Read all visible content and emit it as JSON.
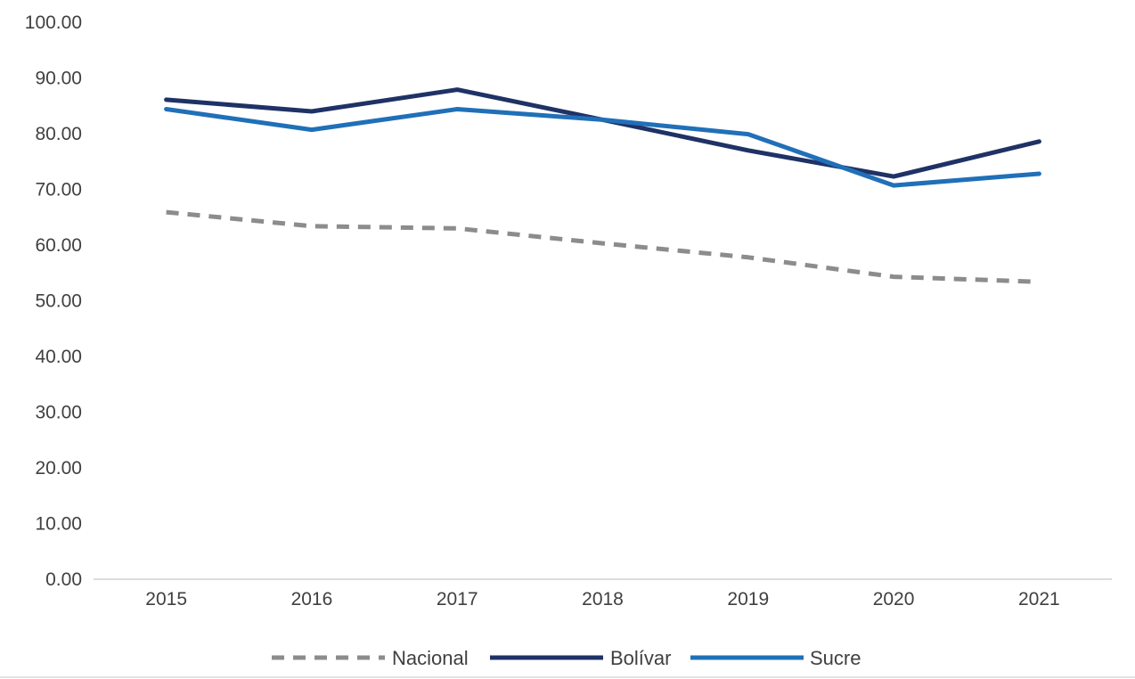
{
  "chart_data": {
    "type": "line",
    "title": "",
    "xlabel": "",
    "ylabel": "",
    "x": [
      "2015",
      "2016",
      "2017",
      "2018",
      "2019",
      "2020",
      "2021"
    ],
    "ylim": [
      0,
      100
    ],
    "yticks": [
      "0.00",
      "10.00",
      "20.00",
      "30.00",
      "40.00",
      "50.00",
      "60.00",
      "70.00",
      "80.00",
      "90.00",
      "100.00"
    ],
    "grid": false,
    "legend_position": "bottom",
    "series": [
      {
        "name": "Nacional",
        "color": "#8c8c8c",
        "style": "dashed",
        "values": [
          65.9,
          63.4,
          63.0,
          60.3,
          57.8,
          54.3,
          53.4
        ]
      },
      {
        "name": "Bolívar",
        "color": "#1f3266",
        "style": "solid",
        "values": [
          86.1,
          84.0,
          87.9,
          82.5,
          77.0,
          72.3,
          78.6
        ]
      },
      {
        "name": "Sucre",
        "color": "#2070b8",
        "style": "solid",
        "values": [
          84.4,
          80.7,
          84.4,
          82.5,
          79.9,
          70.7,
          72.8
        ]
      }
    ]
  }
}
